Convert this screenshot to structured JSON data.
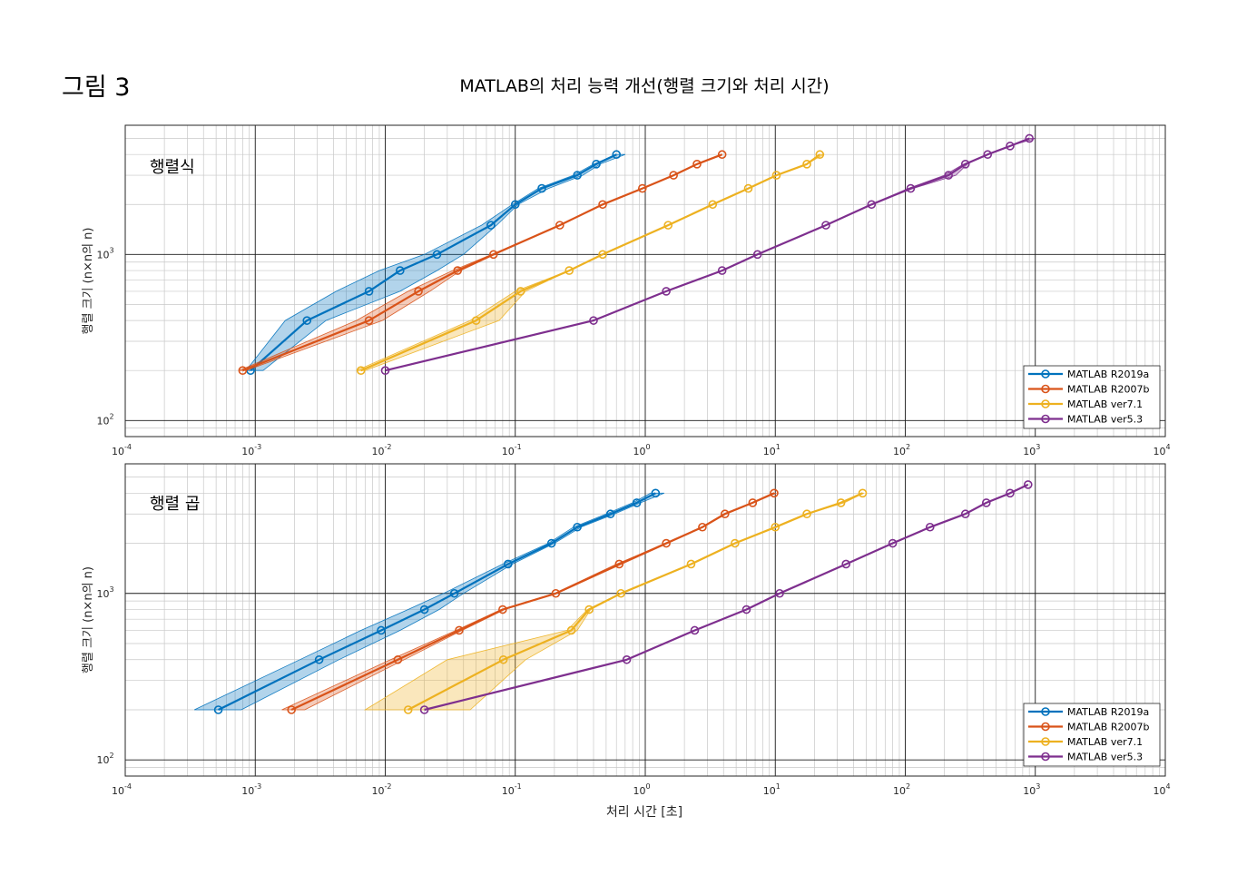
{
  "figure": {
    "label": "그림 3",
    "title": "MATLAB의 처리 능력 개선(행렬 크기와 처리 시간)"
  },
  "colors": {
    "MATLAB R2019a": "#0072BD",
    "MATLAB R2007b": "#D95319",
    "MATLAB ver7.1": "#EDB120",
    "MATLAB ver5.3": "#7E2F8E"
  },
  "chart_data": [
    {
      "type": "line",
      "title": "행렬식",
      "xscale": "log",
      "yscale": "log",
      "xlim": [
        0.0001,
        10000
      ],
      "ylim": [
        80,
        6000
      ],
      "xlabel": "",
      "ylabel": "행렬 크기 (n×n의 n)",
      "x_ticks": [
        "10^-4",
        "10^-3",
        "10^-2",
        "10^-1",
        "10^0",
        "10^1",
        "10^2",
        "10^3",
        "10^4"
      ],
      "y_ticks": [
        "10^2",
        "10^3"
      ],
      "grid": "major and minor",
      "legend": {
        "position": "bottom-right",
        "entries": [
          "MATLAB R2019a",
          "MATLAB R2007b",
          "MATLAB ver7.1",
          "MATLAB ver5.3"
        ]
      },
      "series": [
        {
          "name": "MATLAB R2019a",
          "y": [
            200,
            400,
            600,
            800,
            1000,
            1500,
            2000,
            2500,
            3000,
            3500,
            4000
          ],
          "x": [
            0.00092,
            0.0025,
            0.0075,
            0.013,
            0.025,
            0.065,
            0.1,
            0.16,
            0.3,
            0.42,
            0.6
          ],
          "x_min": [
            0.00085,
            0.0017,
            0.0042,
            0.009,
            0.02,
            0.055,
            0.095,
            0.15,
            0.28,
            0.4,
            0.6
          ],
          "x_max": [
            0.00115,
            0.0035,
            0.013,
            0.025,
            0.04,
            0.072,
            0.105,
            0.18,
            0.33,
            0.45,
            0.7
          ]
        },
        {
          "name": "MATLAB R2007b",
          "y": [
            200,
            400,
            600,
            800,
            1000,
            1500,
            2000,
            2500,
            3000,
            3500,
            4000
          ],
          "x": [
            0.0008,
            0.0075,
            0.018,
            0.036,
            0.068,
            0.22,
            0.47,
            0.95,
            1.65,
            2.5,
            3.9
          ],
          "x_min": [
            0.00075,
            0.006,
            0.015,
            0.033,
            0.066,
            0.22,
            0.47,
            0.95,
            1.65,
            2.5,
            3.9
          ],
          "x_max": [
            0.00085,
            0.0095,
            0.022,
            0.038,
            0.07,
            0.22,
            0.47,
            0.95,
            1.65,
            2.5,
            3.9
          ]
        },
        {
          "name": "MATLAB ver7.1",
          "y": [
            200,
            400,
            600,
            800,
            1000,
            1500,
            2000,
            2500,
            3000,
            3500,
            4000
          ],
          "x": [
            0.0065,
            0.05,
            0.11,
            0.26,
            0.47,
            1.5,
            3.3,
            6.2,
            10.2,
            17.5,
            22
          ],
          "x_min": [
            0.006,
            0.045,
            0.1,
            0.26,
            0.47,
            1.5,
            3.3,
            6.2,
            10.2,
            17.5,
            22
          ],
          "x_max": [
            0.007,
            0.075,
            0.12,
            0.26,
            0.47,
            1.5,
            3.3,
            6.2,
            10.2,
            17.5,
            23.5
          ]
        },
        {
          "name": "MATLAB ver5.3",
          "y": [
            200,
            400,
            600,
            800,
            1000,
            1500,
            2000,
            2500,
            3000,
            3500,
            4000,
            4500,
            5000
          ],
          "x": [
            0.01,
            0.4,
            1.45,
            3.9,
            7.3,
            24.5,
            55,
            110,
            215,
            290,
            430,
            640,
            900
          ],
          "x_min": [
            0.01,
            0.4,
            1.45,
            3.9,
            7.3,
            24.5,
            55,
            105,
            200,
            280,
            430,
            640,
            900
          ],
          "x_max": [
            0.01,
            0.4,
            1.45,
            3.9,
            7.3,
            24.5,
            55,
            115,
            245,
            300,
            430,
            640,
            1000
          ]
        }
      ]
    },
    {
      "type": "line",
      "title": "행렬 곱",
      "xscale": "log",
      "yscale": "log",
      "xlim": [
        0.0001,
        10000
      ],
      "ylim": [
        80,
        6000
      ],
      "xlabel": "처리 시간 [초]",
      "ylabel": "행렬 크기 (n×n의 n)",
      "x_ticks": [
        "10^-4",
        "10^-3",
        "10^-2",
        "10^-1",
        "10^0",
        "10^1",
        "10^2",
        "10^3",
        "10^4"
      ],
      "y_ticks": [
        "10^2",
        "10^3"
      ],
      "grid": "major and minor",
      "legend": {
        "position": "bottom-right",
        "entries": [
          "MATLAB R2019a",
          "MATLAB R2007b",
          "MATLAB ver7.1",
          "MATLAB ver5.3"
        ]
      },
      "series": [
        {
          "name": "MATLAB R2019a",
          "y": [
            200,
            400,
            600,
            800,
            1000,
            1500,
            2000,
            2500,
            3000,
            3500,
            4000
          ],
          "x": [
            0.00052,
            0.0031,
            0.0093,
            0.02,
            0.034,
            0.088,
            0.19,
            0.3,
            0.54,
            0.86,
            1.2
          ],
          "x_min": [
            0.00034,
            0.0022,
            0.0065,
            0.015,
            0.028,
            0.08,
            0.18,
            0.28,
            0.5,
            0.8,
            1.1
          ],
          "x_max": [
            0.00078,
            0.0044,
            0.013,
            0.026,
            0.04,
            0.095,
            0.2,
            0.32,
            0.58,
            0.92,
            1.4
          ]
        },
        {
          "name": "MATLAB R2007b",
          "y": [
            200,
            400,
            600,
            800,
            1000,
            1500,
            2000,
            2500,
            3000,
            3500,
            4000
          ],
          "x": [
            0.0019,
            0.0125,
            0.037,
            0.08,
            0.205,
            0.63,
            1.45,
            2.75,
            4.1,
            6.7,
            9.8
          ],
          "x_min": [
            0.0016,
            0.011,
            0.035,
            0.078,
            0.2,
            0.6,
            1.45,
            2.7,
            4.0,
            6.6,
            9.7
          ],
          "x_max": [
            0.0024,
            0.014,
            0.039,
            0.083,
            0.21,
            0.66,
            1.5,
            2.8,
            4.2,
            6.8,
            10.2
          ]
        },
        {
          "name": "MATLAB ver7.1",
          "y": [
            200,
            400,
            600,
            800,
            1000,
            1500,
            2000,
            2500,
            3000,
            3500,
            4000
          ],
          "x": [
            0.015,
            0.081,
            0.27,
            0.37,
            0.65,
            2.25,
            4.9,
            10,
            17.5,
            32,
            47
          ],
          "x_min": [
            0.007,
            0.03,
            0.25,
            0.36,
            0.64,
            2.25,
            4.9,
            10,
            17.5,
            31,
            47
          ],
          "x_max": [
            0.045,
            0.12,
            0.3,
            0.38,
            0.66,
            2.25,
            4.9,
            10,
            17.5,
            34,
            48
          ]
        },
        {
          "name": "MATLAB ver5.3",
          "y": [
            200,
            400,
            600,
            800,
            1000,
            1500,
            2000,
            2500,
            3000,
            3500,
            4000,
            4500
          ],
          "x": [
            0.02,
            0.72,
            2.4,
            6,
            10.8,
            35,
            80,
            155,
            290,
            420,
            640,
            880
          ],
          "x_min": [
            0.02,
            0.72,
            2.4,
            6,
            10.8,
            35,
            80,
            155,
            290,
            420,
            640,
            880
          ],
          "x_max": [
            0.02,
            0.72,
            2.4,
            6,
            10.8,
            35,
            80,
            155,
            290,
            420,
            640,
            880
          ]
        }
      ]
    }
  ]
}
